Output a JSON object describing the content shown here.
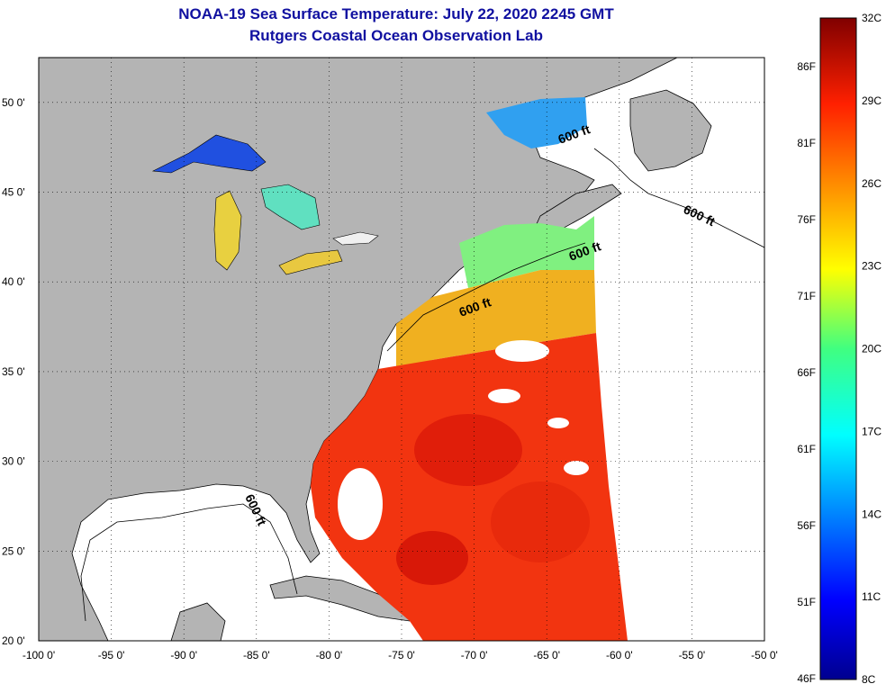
{
  "header": {
    "title": "NOAA-19 Sea Surface Temperature:  July 22, 2020 2245 GMT",
    "subtitle": "Rutgers Coastal Ocean Observation Lab"
  },
  "map": {
    "lon_range": [
      -100,
      -50
    ],
    "lat_range": [
      20,
      52.5
    ],
    "lon_ticks": [
      "-100 0'",
      "-95 0'",
      "-90 0'",
      "-85 0'",
      "-80 0'",
      "-75 0'",
      "-70 0'",
      "-65 0'",
      "-60 0'",
      "-55 0'",
      "-50 0'"
    ],
    "lat_ticks": [
      "50 0'",
      "45 0'",
      "40 0'",
      "35 0'",
      "30 0'",
      "25 0'",
      "20 0'"
    ],
    "land_color": "#b4b4b4",
    "grid": "dotted",
    "contour_labels": [
      "600 ft",
      "600 ft",
      "600 ft",
      "600 ft",
      "600 ft"
    ]
  },
  "colorbar": {
    "fahrenheit_labels": [
      "86F",
      "81F",
      "76F",
      "71F",
      "66F",
      "61F",
      "56F",
      "51F",
      "46F"
    ],
    "celsius_labels": [
      "32C",
      "29C",
      "26C",
      "23C",
      "20C",
      "17C",
      "14C",
      "11C",
      "8C"
    ],
    "range_c": [
      8,
      32
    ]
  }
}
